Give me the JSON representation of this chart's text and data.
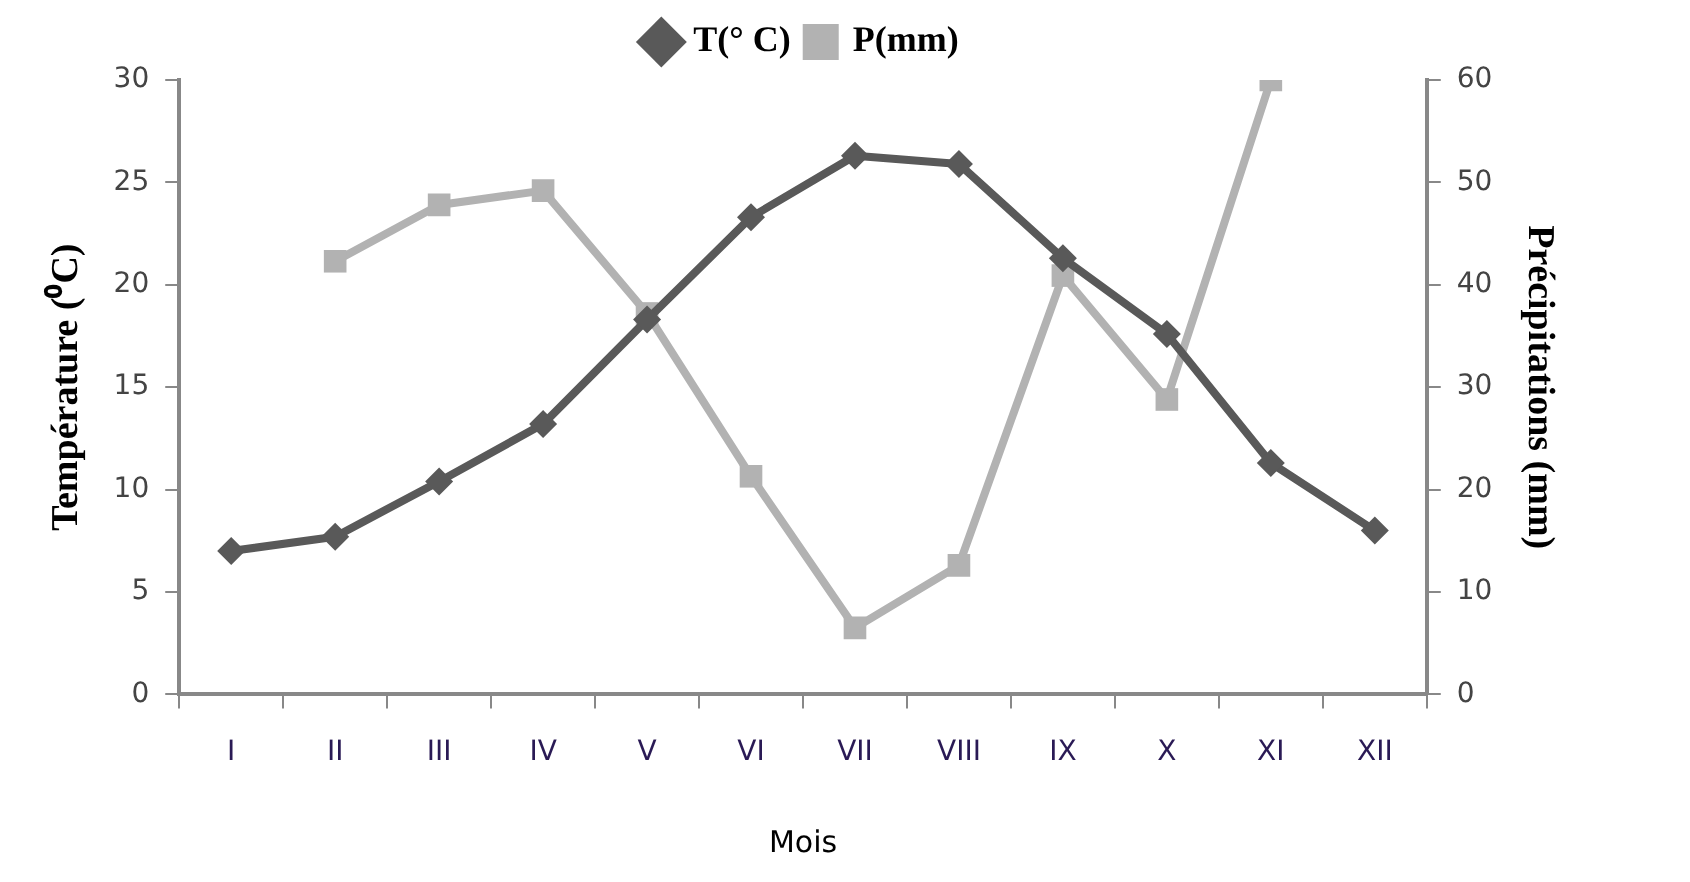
{
  "chart_data": {
    "type": "line",
    "categories": [
      "I",
      "II",
      "III",
      "IV",
      "V",
      "VI",
      "VII",
      "VIII",
      "IX",
      "X",
      "XI",
      "XII"
    ],
    "series": [
      {
        "name": "T(° C)",
        "color": "#595959",
        "marker": "diamond",
        "values": [
          7,
          7.7,
          10.4,
          13.2,
          18.3,
          23.3,
          26.3,
          25.9,
          21.3,
          17.6,
          11.3,
          8.0
        ]
      },
      {
        "name": "P(mm)",
        "color": "#b2b2b2",
        "marker": "square",
        "axis": "y2",
        "values": [
          null,
          42.3,
          47.8,
          49.2,
          37.2,
          21.3,
          6.5,
          12.6,
          40.9,
          28.8,
          60,
          null
        ]
      }
    ],
    "xlabel": "Mois",
    "ylabel": "Température (⁰C)",
    "y2label": "Précipitations (mm)",
    "ylim": [
      0,
      30
    ],
    "yticks": [
      0,
      5,
      10,
      15,
      20,
      25,
      30
    ],
    "y2lim": [
      0,
      60
    ],
    "y2ticks": [
      0,
      10,
      20,
      30,
      40,
      50,
      60
    ],
    "grid": false,
    "legend": "top",
    "line_style": "solid"
  }
}
